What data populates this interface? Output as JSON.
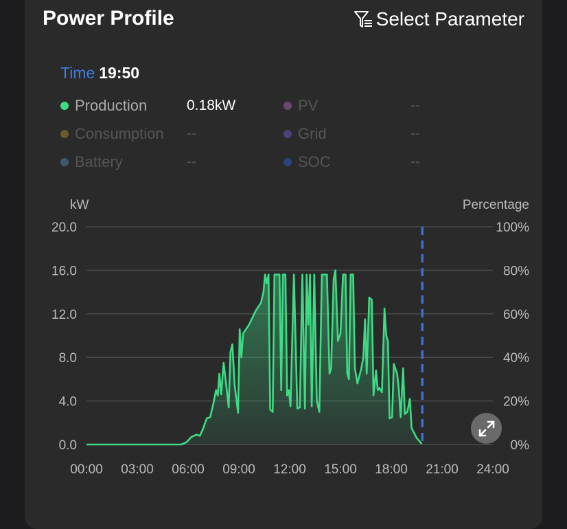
{
  "header": {
    "title": "Power Profile",
    "select_parameter": "Select Parameter",
    "filter_icon": "filter-list-icon"
  },
  "tooltip": {
    "time_label": "Time",
    "time_value": "19:50"
  },
  "legend": [
    {
      "name": "Production",
      "value": "0.18kW",
      "color": "#3ddc84",
      "active": true
    },
    {
      "name": "PV",
      "value": "--",
      "color": "#6a4a6e",
      "active": false
    },
    {
      "name": "Consumption",
      "value": "--",
      "color": "#6b5a2a",
      "active": false
    },
    {
      "name": "Grid",
      "value": "--",
      "color": "#4f3f7a",
      "active": false
    },
    {
      "name": "Battery",
      "value": "--",
      "color": "#3e5a6a",
      "active": false
    },
    {
      "name": "SOC",
      "value": "--",
      "color": "#2b4478",
      "active": false
    }
  ],
  "chart_data": {
    "type": "area",
    "ylabel": "kW",
    "y2label": "Percentage",
    "ylim": [
      0,
      20
    ],
    "y2lim": [
      0,
      100
    ],
    "yticks": [
      "0.0",
      "4.0",
      "8.0",
      "12.0",
      "16.0",
      "20.0"
    ],
    "y2ticks": [
      "0%",
      "20%",
      "40%",
      "60%",
      "80%",
      "100%"
    ],
    "xlim": [
      "00:00",
      "24:00"
    ],
    "xticks": [
      "00:00",
      "03:00",
      "06:00",
      "09:00",
      "12:00",
      "15:00",
      "18:00",
      "21:00",
      "24:00"
    ],
    "grid": true,
    "cursor_time": "19:50",
    "series": [
      {
        "name": "Production",
        "color": "#3ddc84",
        "points": [
          [
            "00:00",
            0
          ],
          [
            "05:36",
            0
          ],
          [
            "05:54",
            0.2
          ],
          [
            "06:12",
            0.7
          ],
          [
            "06:30",
            0.9
          ],
          [
            "06:42",
            0.8
          ],
          [
            "06:54",
            1.5
          ],
          [
            "07:06",
            2.4
          ],
          [
            "07:18",
            2.5
          ],
          [
            "07:30",
            3.8
          ],
          [
            "07:39",
            5.0
          ],
          [
            "07:45",
            4.5
          ],
          [
            "07:51",
            6.5
          ],
          [
            "07:57",
            4.6
          ],
          [
            "08:06",
            7.5
          ],
          [
            "08:15",
            5.5
          ],
          [
            "08:24",
            3.4
          ],
          [
            "08:30",
            8.5
          ],
          [
            "08:37",
            9.2
          ],
          [
            "08:45",
            5.5
          ],
          [
            "08:57",
            2.9
          ],
          [
            "09:03",
            10.6
          ],
          [
            "09:09",
            8.0
          ],
          [
            "09:15",
            10.2
          ],
          [
            "09:36",
            11.0
          ],
          [
            "10:00",
            12.3
          ],
          [
            "10:18",
            13.0
          ],
          [
            "10:27",
            14.0
          ],
          [
            "10:33",
            15.6
          ],
          [
            "10:39",
            14.8
          ],
          [
            "10:45",
            15.6
          ],
          [
            "10:51",
            3.2
          ],
          [
            "11:00",
            3.0
          ],
          [
            "11:06",
            15.6
          ],
          [
            "11:24",
            15.6
          ],
          [
            "11:30",
            5.0
          ],
          [
            "11:36",
            15.6
          ],
          [
            "11:45",
            15.6
          ],
          [
            "11:51",
            4.5
          ],
          [
            "11:57",
            5.0
          ],
          [
            "12:03",
            3.5
          ],
          [
            "12:15",
            15.6
          ],
          [
            "12:27",
            3.3
          ],
          [
            "12:36",
            3.4
          ],
          [
            "12:45",
            15.6
          ],
          [
            "12:54",
            3.3
          ],
          [
            "13:00",
            15.6
          ],
          [
            "13:06",
            11.0
          ],
          [
            "13:12",
            15.6
          ],
          [
            "13:18",
            3.5
          ],
          [
            "13:27",
            15.6
          ],
          [
            "13:36",
            4.0
          ],
          [
            "13:45",
            3.0
          ],
          [
            "13:54",
            15.6
          ],
          [
            "14:12",
            15.6
          ],
          [
            "14:21",
            6.5
          ],
          [
            "14:27",
            7.0
          ],
          [
            "14:36",
            15.2
          ],
          [
            "14:42",
            16.0
          ],
          [
            "14:51",
            9.5
          ],
          [
            "15:00",
            10.2
          ],
          [
            "15:09",
            15.6
          ],
          [
            "15:18",
            15.6
          ],
          [
            "15:24",
            6.5
          ],
          [
            "15:30",
            6.0
          ],
          [
            "15:36",
            15.6
          ],
          [
            "15:45",
            15.6
          ],
          [
            "15:51",
            7.0
          ],
          [
            "16:00",
            5.6
          ],
          [
            "16:12",
            6.8
          ],
          [
            "16:21",
            8.0
          ],
          [
            "16:27",
            11.5
          ],
          [
            "16:33",
            6.5
          ],
          [
            "16:42",
            13.5
          ],
          [
            "16:51",
            13.3
          ],
          [
            "16:57",
            4.5
          ],
          [
            "17:06",
            6.8
          ],
          [
            "17:12",
            5.0
          ],
          [
            "17:18",
            5.2
          ],
          [
            "17:27",
            4.8
          ],
          [
            "17:36",
            12.5
          ],
          [
            "17:42",
            10.0
          ],
          [
            "17:48",
            9.5
          ],
          [
            "17:54",
            2.4
          ],
          [
            "18:03",
            2.5
          ],
          [
            "18:09",
            7.4
          ],
          [
            "18:21",
            6.5
          ],
          [
            "18:27",
            5.0
          ],
          [
            "18:33",
            2.5
          ],
          [
            "18:42",
            7.0
          ],
          [
            "18:48",
            2.8
          ],
          [
            "18:57",
            3.0
          ],
          [
            "19:06",
            4.2
          ],
          [
            "19:12",
            1.5
          ],
          [
            "19:30",
            0.6
          ],
          [
            "19:48",
            0.05
          ]
        ]
      }
    ]
  }
}
